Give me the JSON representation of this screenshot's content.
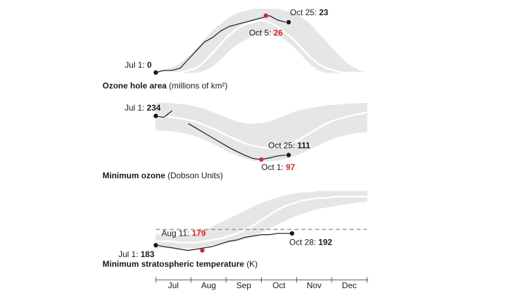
{
  "chart_data": [
    {
      "type": "line",
      "title": "Ozone hole area",
      "subtitle": "(millions of km²)",
      "ylim": [
        0,
        30
      ],
      "range_high": {
        "color": "#e6e6e6",
        "values": [
          0,
          1,
          2,
          4,
          7,
          11,
          15,
          19,
          22,
          25,
          27,
          28,
          29,
          29,
          29,
          29,
          28,
          27,
          25,
          22,
          18,
          14,
          10,
          6,
          3,
          1,
          0
        ]
      },
      "range_low": {
        "color": "#e6e6e6",
        "values": [
          0,
          0,
          0,
          0,
          0,
          0,
          1,
          3,
          6,
          10,
          13,
          15,
          17,
          18,
          18,
          17,
          15,
          12,
          8,
          4,
          1,
          0,
          0,
          0,
          0,
          0,
          0
        ]
      },
      "mean": {
        "color": "#ffffff",
        "values": [
          0,
          0,
          0,
          0,
          1,
          2,
          5,
          9,
          13,
          17,
          20,
          22,
          23,
          24,
          23,
          21,
          18,
          15,
          11,
          7,
          4,
          2,
          1,
          0,
          0,
          0,
          0
        ]
      },
      "observed": {
        "color": "#1a1a1a",
        "values": [
          0,
          1,
          1,
          2,
          6,
          10,
          14,
          16,
          19,
          21,
          22,
          23,
          24,
          25,
          26,
          24,
          23,
          null,
          null,
          null,
          null,
          null,
          null,
          null,
          null,
          null,
          null
        ]
      },
      "annotations": [
        {
          "label": "Jul 1:",
          "value": 0,
          "color": "#1a1a1a"
        },
        {
          "label": "Oct 25:",
          "value": 23,
          "color": "#1a1a1a"
        },
        {
          "label": "Oct 5:",
          "value": 26,
          "color": "#d42a2a"
        }
      ]
    },
    {
      "type": "line",
      "title": "Minimum ozone",
      "subtitle": "(Dobson Units)",
      "ylim": [
        90,
        290
      ],
      "range_high": {
        "color": "#e6e6e6",
        "values": [
          275,
          275,
          273,
          270,
          268,
          262,
          255,
          245,
          235,
          225,
          215,
          210,
          208,
          210,
          215,
          225,
          235,
          245,
          252,
          258,
          262,
          266,
          268,
          270,
          272,
          273,
          274
        ]
      },
      "range_low": {
        "color": "#e6e6e6",
        "values": [
          190,
          188,
          186,
          183,
          178,
          170,
          160,
          148,
          135,
          122,
          110,
          100,
          94,
          92,
          92,
          95,
          100,
          108,
          118,
          130,
          142,
          155,
          165,
          172,
          178,
          182,
          185
        ]
      },
      "mean": {
        "color": "#ffffff",
        "values": [
          235,
          233,
          230,
          226,
          222,
          215,
          205,
          195,
          183,
          170,
          158,
          148,
          140,
          135,
          133,
          135,
          140,
          150,
          165,
          180,
          195,
          210,
          220,
          228,
          235,
          240,
          245
        ]
      },
      "observed": {
        "color": "#1a1a1a",
        "values": [
          234,
          230,
          250,
          null,
          210,
          195,
          180,
          165,
          150,
          135,
          122,
          110,
          100,
          97,
          102,
          108,
          111,
          null,
          null,
          null,
          null,
          null,
          null,
          null,
          null,
          null,
          null
        ]
      },
      "annotations": [
        {
          "label": "Jul 1:",
          "value": 234,
          "color": "#1a1a1a"
        },
        {
          "label": "Oct 25:",
          "value": 111,
          "color": "#1a1a1a"
        },
        {
          "label": "Oct 1:",
          "value": 97,
          "color": "#d42a2a"
        }
      ]
    },
    {
      "type": "line",
      "title": "Minimum stratospheric temperature",
      "subtitle": "(K)",
      "ylim": [
        175,
        225
      ],
      "categories": [
        "Jul",
        "Aug",
        "Sep",
        "Oct",
        "Nov",
        "Dec"
      ],
      "threshold": {
        "value": 195,
        "color": "#999999"
      },
      "range_high": {
        "color": "#e6e6e6",
        "values": [
          191,
          191,
          190,
          190,
          191,
          192,
          194,
          197,
          200,
          203,
          206,
          209,
          212,
          215,
          217,
          219,
          221,
          222,
          223,
          223,
          224,
          224,
          224,
          224,
          224,
          224,
          224
        ]
      },
      "range_low": {
        "color": "#e6e6e6",
        "values": [
          181,
          181,
          181,
          181,
          181,
          181,
          182,
          183,
          184,
          185,
          186,
          188,
          190,
          193,
          196,
          199,
          202,
          205,
          207,
          209,
          211,
          212,
          213,
          214,
          215,
          216,
          216
        ]
      },
      "mean": {
        "color": "#ffffff",
        "values": [
          186,
          186,
          186,
          185,
          185,
          185,
          186,
          187,
          188,
          190,
          192,
          195,
          198,
          202,
          206,
          210,
          213,
          215,
          217,
          218,
          219,
          219,
          220,
          220,
          220,
          220,
          220
        ]
      },
      "observed": {
        "color": "#1a1a1a",
        "values": [
          183,
          182,
          181,
          180,
          179,
          180,
          181,
          182,
          184,
          186,
          187,
          189,
          190,
          191,
          191,
          192,
          192,
          192,
          null,
          null,
          null,
          null,
          null,
          null,
          null,
          null,
          null
        ]
      },
      "annotations": [
        {
          "label": "Jul 1:",
          "value": 183,
          "color": "#1a1a1a"
        },
        {
          "label": "Aug 11:",
          "value": 179,
          "color": "#d42a2a"
        },
        {
          "label": "Oct 28:",
          "value": 192,
          "color": "#1a1a1a"
        }
      ]
    }
  ]
}
